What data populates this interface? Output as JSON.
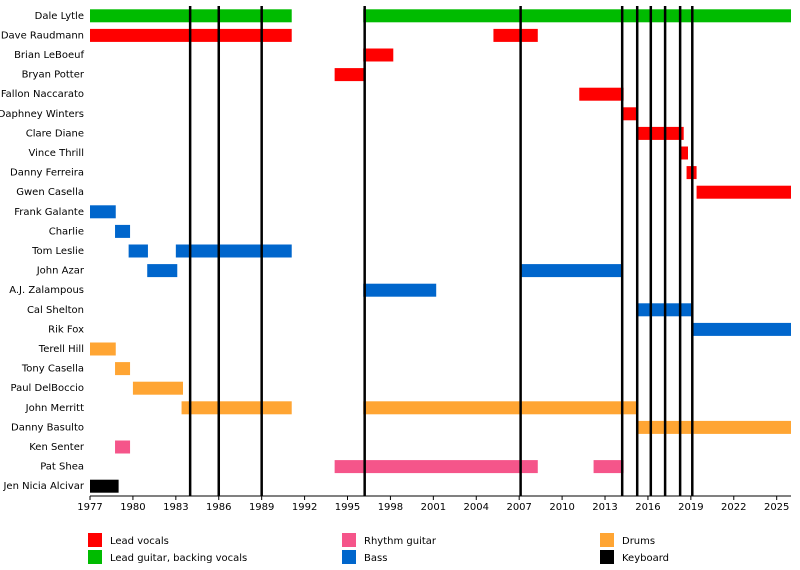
{
  "chart_data": {
    "type": "timeline",
    "categories": [
      "Dale Lytle",
      "Dave Raudmann",
      "Brian LeBoeuf",
      "Bryan Potter",
      "Fallon Naccarato",
      "Daphney Winters",
      "Clare Diane",
      "Vince Thrill",
      "Danny Ferreira",
      "Gwen Casella",
      "Frank Galante",
      "Charlie",
      "Tom Leslie",
      "John Azar",
      "A.J. Zalampous",
      "Cal Shelton",
      "Rik Fox",
      "Terell Hill",
      "Tony Casella",
      "Paul DelBoccio",
      "John Merritt",
      "Danny Basulto",
      "Ken Senter",
      "Pat Shea",
      "Jen Nicia Alcivar"
    ],
    "series": [
      {
        "name": "Lead vocals",
        "color": "#ff0000",
        "values": [
          null,
          [
            [
              1977,
              1991.1
            ],
            [
              2005.2,
              2008.3
            ]
          ],
          [
            [
              1996.1,
              1998.2
            ]
          ],
          [
            [
              1994.1,
              1996.2
            ]
          ],
          [
            [
              2011.2,
              2014.3
            ]
          ],
          [
            [
              2014.2,
              2015.25
            ]
          ],
          [
            [
              2015.25,
              2018.5
            ]
          ],
          [
            [
              2018.3,
              2018.8
            ]
          ],
          [
            [
              2018.7,
              2019.4
            ]
          ],
          [
            [
              2019.4,
              2026
            ]
          ],
          null,
          null,
          null,
          null,
          null,
          null,
          null,
          null,
          null,
          null,
          null,
          null,
          null,
          null,
          null
        ]
      },
      {
        "name": "Lead guitar, backing vocals",
        "color": "#00bb00",
        "values": [
          [
            [
              1977,
              1991.1
            ],
            [
              1996.1,
              2026
            ]
          ],
          null,
          null,
          null,
          null,
          null,
          null,
          null,
          null,
          null,
          null,
          null,
          null,
          null,
          null,
          null,
          null,
          null,
          null,
          null,
          null,
          null,
          null,
          null,
          null
        ]
      },
      {
        "name": "Rhythm guitar",
        "color": "#f5558a",
        "values": [
          null,
          null,
          null,
          null,
          null,
          null,
          null,
          null,
          null,
          null,
          null,
          null,
          null,
          null,
          null,
          null,
          null,
          null,
          null,
          null,
          null,
          null,
          [
            [
              1978.75,
              1979.8
            ]
          ],
          [
            [
              1994.1,
              2008.3
            ],
            [
              2012.2,
              2014.3
            ]
          ],
          null
        ]
      },
      {
        "name": "Bass",
        "color": "#0066cc",
        "values": [
          null,
          null,
          null,
          null,
          null,
          null,
          null,
          null,
          null,
          null,
          [
            [
              1977,
              1978.8
            ]
          ],
          [
            [
              1978.75,
              1979.8
            ]
          ],
          [
            [
              1979.7,
              1981.05
            ],
            [
              1983,
              1991.1
            ]
          ],
          [
            [
              1981,
              1983.1
            ],
            [
              2007.1,
              2014.2
            ]
          ],
          [
            [
              1996.1,
              2001.2
            ]
          ],
          [
            [
              2015.25,
              2019.1
            ]
          ],
          [
            [
              2019.1,
              2026
            ]
          ],
          null,
          null,
          null,
          null,
          null,
          null,
          null,
          null
        ]
      },
      {
        "name": "Drums",
        "color": "#ffa533",
        "values": [
          null,
          null,
          null,
          null,
          null,
          null,
          null,
          null,
          null,
          null,
          null,
          null,
          null,
          null,
          null,
          null,
          null,
          [
            [
              1977,
              1978.8
            ]
          ],
          [
            [
              1978.75,
              1979.8
            ]
          ],
          [
            [
              1980,
              1983.5
            ]
          ],
          [
            [
              1983.4,
              1991.1
            ],
            [
              1996.1,
              2015.25
            ]
          ],
          [
            [
              2015.25,
              2026
            ]
          ],
          null,
          null,
          null
        ]
      },
      {
        "name": "Keyboard",
        "color": "#000000",
        "values": [
          null,
          null,
          null,
          null,
          null,
          null,
          null,
          null,
          null,
          null,
          null,
          null,
          null,
          null,
          null,
          null,
          null,
          null,
          null,
          null,
          null,
          null,
          null,
          null,
          [
            [
              1977,
              1979
            ]
          ]
        ]
      }
    ],
    "releases": [
      1984,
      1986,
      1989,
      1996.2,
      2007.1,
      2014.2,
      2015.25,
      2016.2,
      2017.2,
      2018.25,
      2019.1
    ],
    "xlim": [
      1977,
      2026
    ],
    "xticks": [
      1977,
      1980,
      1983,
      1986,
      1989,
      1992,
      1995,
      1998,
      2001,
      2004,
      2007,
      2010,
      2013,
      2016,
      2019,
      2022,
      2025
    ]
  }
}
